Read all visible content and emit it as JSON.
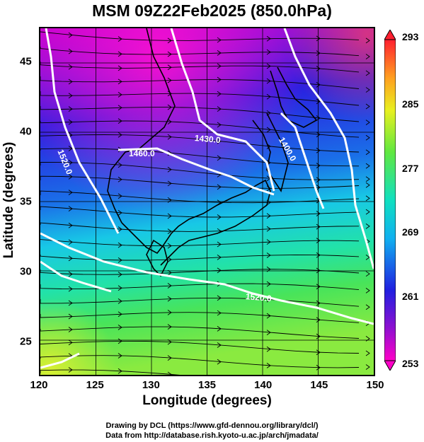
{
  "title": "MSM 09Z22Feb2025 (850.0hPa)",
  "xlabel": "Longitude (degrees)",
  "ylabel": "Latitude  (degrees)",
  "x_ticks": [
    "120",
    "125",
    "130",
    "135",
    "140",
    "145",
    "150"
  ],
  "y_ticks": [
    "45",
    "40",
    "35",
    "30",
    "25"
  ],
  "colorbar_ticks": [
    "293",
    "285",
    "277",
    "269",
    "261",
    "253"
  ],
  "contour_labels": [
    "1520.0",
    "1460.0",
    "1430.0",
    "1400.0",
    "1520.0"
  ],
  "footer": {
    "line1": "Drawing by DCL (https://www.gfd-dennou.org/library/dcl/)",
    "line2": "Data from http://database.rish.kyoto-u.ac.jp/arch/jmadata/"
  },
  "map": {
    "x_range": [
      120,
      150
    ],
    "y_range": [
      22.5,
      47.5
    ],
    "colorbar_range": [
      253,
      293
    ],
    "colors": {
      "cold": "#d400c8",
      "cool": "#2a22e0",
      "mid": "#18d8e8",
      "warm": "#4ae46a",
      "hot": "#c8ee30"
    }
  }
}
